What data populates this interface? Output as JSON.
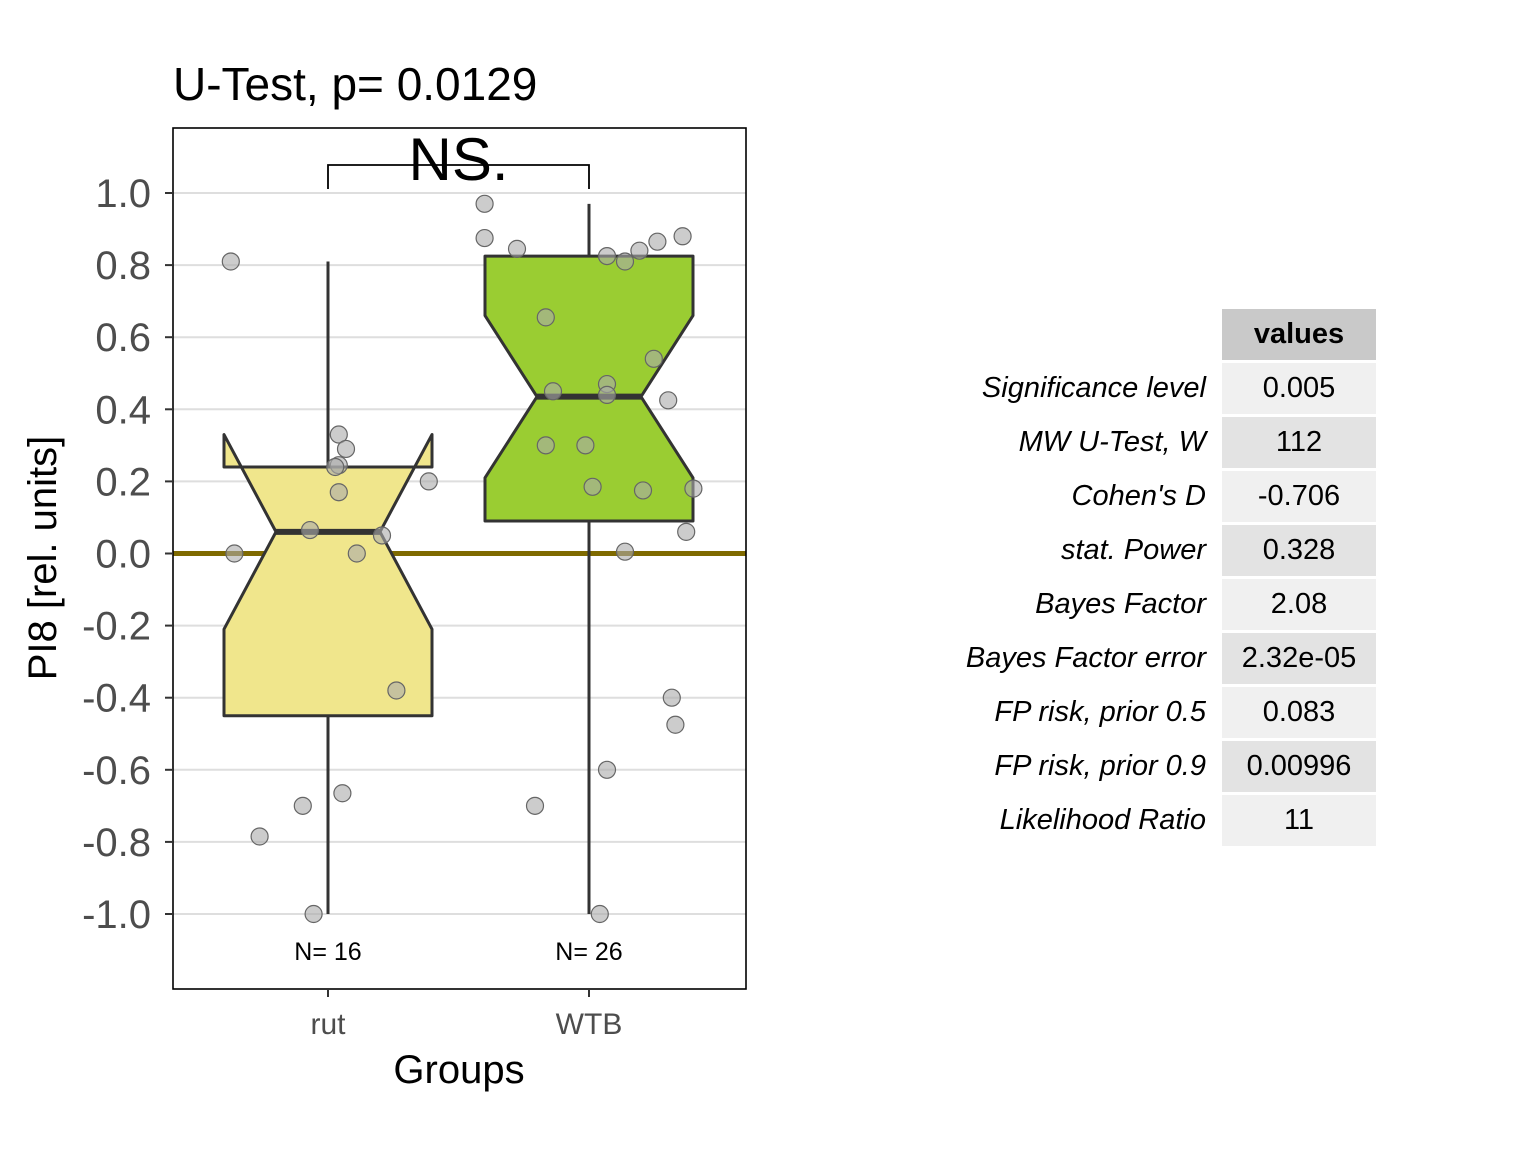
{
  "chart_data": {
    "type": "box",
    "title": "U-Test, p= 0.0129",
    "xlabel": "Groups",
    "ylabel": "PI8 [rel. units]",
    "ylim": [
      -1.2,
      1.2
    ],
    "yticks": [
      "1.0",
      "0.8",
      "0.6",
      "0.4",
      "0.2",
      "0.0",
      "-0.2",
      "-0.4",
      "-0.6",
      "-0.8",
      "-1.0"
    ],
    "reference_line": 0.0,
    "significance": {
      "label": "NS.",
      "groups": [
        "rut",
        "WTB"
      ]
    },
    "grid": true,
    "groups": [
      {
        "name": "rut",
        "n_label": "N= 16",
        "color": "#f0e68c",
        "median": 0.06,
        "q1": -0.45,
        "q3": 0.24,
        "notch_low": -0.21,
        "notch_high": 0.33,
        "whisker_low": -1.0,
        "whisker_high": 0.81,
        "points": [
          [
            -0.27,
            0.81
          ],
          [
            0.03,
            0.33
          ],
          [
            0.05,
            0.29
          ],
          [
            0.03,
            0.245
          ],
          [
            0.02,
            0.24
          ],
          [
            0.28,
            0.2
          ],
          [
            0.03,
            0.17
          ],
          [
            -0.05,
            0.065
          ],
          [
            0.15,
            0.05
          ],
          [
            -0.26,
            0.0
          ],
          [
            0.08,
            0.0
          ],
          [
            0.19,
            -0.38
          ],
          [
            0.04,
            -0.665
          ],
          [
            -0.07,
            -0.7
          ],
          [
            -0.19,
            -0.785
          ],
          [
            -0.04,
            -1.0
          ]
        ]
      },
      {
        "name": "WTB",
        "n_label": "N= 26",
        "color": "#9acd32",
        "median": 0.435,
        "q1": 0.09,
        "q3": 0.825,
        "notch_low": 0.21,
        "notch_high": 0.66,
        "whisker_low": -1.0,
        "whisker_high": 0.97,
        "points": [
          [
            -0.29,
            0.97
          ],
          [
            -0.29,
            0.875
          ],
          [
            -0.2,
            0.845
          ],
          [
            0.05,
            0.825
          ],
          [
            0.1,
            0.81
          ],
          [
            0.14,
            0.84
          ],
          [
            0.19,
            0.865
          ],
          [
            0.26,
            0.88
          ],
          [
            -0.12,
            0.655
          ],
          [
            0.18,
            0.54
          ],
          [
            0.05,
            0.47
          ],
          [
            -0.1,
            0.45
          ],
          [
            0.05,
            0.44
          ],
          [
            0.22,
            0.425
          ],
          [
            -0.12,
            0.3
          ],
          [
            -0.01,
            0.3
          ],
          [
            0.01,
            0.185
          ],
          [
            0.15,
            0.175
          ],
          [
            0.29,
            0.18
          ],
          [
            0.27,
            0.06
          ],
          [
            0.1,
            0.005
          ],
          [
            0.23,
            -0.4
          ],
          [
            0.24,
            -0.475
          ],
          [
            0.05,
            -0.6
          ],
          [
            -0.15,
            -0.7
          ],
          [
            0.03,
            -1.0
          ]
        ]
      }
    ]
  },
  "stats_table": {
    "header": "values",
    "rows": [
      {
        "label": "Significance level",
        "value": "0.005"
      },
      {
        "label": "MW U-Test, W",
        "value": "112"
      },
      {
        "label": "Cohen's D",
        "value": "-0.706"
      },
      {
        "label": "stat. Power",
        "value": "0.328"
      },
      {
        "label": "Bayes Factor",
        "value": "2.08"
      },
      {
        "label": "Bayes Factor error",
        "value": "2.32e-05"
      },
      {
        "label": "FP risk, prior  0.5",
        "value": "0.083"
      },
      {
        "label": "FP risk, prior  0.9",
        "value": "0.00996"
      },
      {
        "label": "Likelihood Ratio",
        "value": "11"
      }
    ]
  },
  "colors": {
    "reference_line": "#7f6a00",
    "grid": "#dedede",
    "box_stroke": "#333333",
    "point_fill": "#aaaaaa"
  }
}
